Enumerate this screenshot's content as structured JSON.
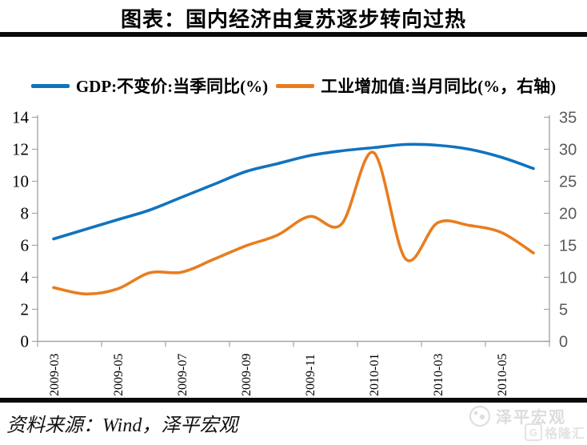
{
  "header": {
    "title": "图表：国内经济由复苏逐步转向过热"
  },
  "legend": {
    "items": [
      {
        "label": "GDP:不变价:当季同比(%)",
        "color": "#1173be"
      },
      {
        "label": "工业增加值:当月同比(%，右轴)",
        "color": "#e87d1f"
      }
    ]
  },
  "chart_data": {
    "type": "line",
    "title": "图表：国内经济由复苏逐步转向过热",
    "x": [
      "2009-03",
      "2009-04",
      "2009-05",
      "2009-06",
      "2009-07",
      "2009-08",
      "2009-09",
      "2009-10",
      "2009-11",
      "2009-12",
      "2010-01",
      "2010-02",
      "2010-03",
      "2010-04",
      "2010-05",
      "2010-06"
    ],
    "x_axis_labels": [
      "2009-03",
      "2009-05",
      "2009-07",
      "2009-09",
      "2009-11",
      "2010-01",
      "2010-03",
      "2010-05"
    ],
    "series": [
      {
        "name": "GDP:不变价:当季同比(%)",
        "axis": "left",
        "color": "#1173be",
        "values": [
          6.4,
          7.0,
          7.6,
          8.2,
          9.0,
          9.8,
          10.6,
          11.1,
          11.6,
          11.9,
          12.1,
          12.3,
          12.25,
          12.0,
          11.5,
          10.8
        ]
      },
      {
        "name": "工业增加值:当月同比(%，右轴)",
        "axis": "right",
        "color": "#e87d1f",
        "values": [
          8.4,
          7.4,
          8.2,
          10.7,
          10.8,
          12.8,
          14.9,
          16.6,
          19.5,
          18.3,
          29.5,
          12.9,
          18.5,
          18.1,
          17.0,
          13.8
        ]
      }
    ],
    "left_axis": {
      "min": 0,
      "max": 14,
      "step": 2,
      "ticks": [
        14,
        12,
        10,
        8,
        6,
        4,
        2,
        0
      ]
    },
    "right_axis": {
      "min": 0,
      "max": 35,
      "step": 5,
      "ticks": [
        35,
        30,
        25,
        20,
        15,
        10,
        5,
        0
      ]
    },
    "grid": false,
    "legend_position": "top"
  },
  "footer": {
    "source": "资料来源：Wind，泽平宏观"
  },
  "watermark": {
    "brand": "泽平宏观",
    "g_letter": "G",
    "platform": "格隆汇"
  },
  "colors": {
    "gdp_line": "#1173be",
    "industry_line": "#e87d1f",
    "axis": "#a6a6a6",
    "left_axis_label": "#000000",
    "right_axis_label": "#595959",
    "rule": "#0a0a0a",
    "watermark": "#d9d9d9"
  }
}
